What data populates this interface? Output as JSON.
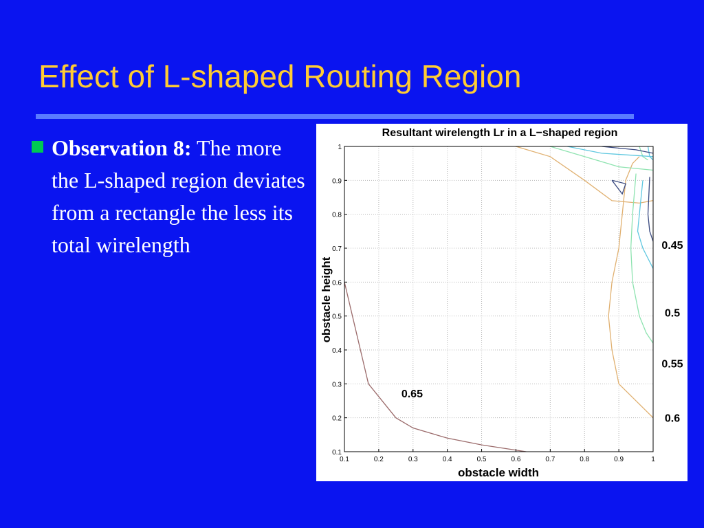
{
  "slide": {
    "title": "Effect of L-shaped Routing Region",
    "bullet_lead": "Observation 8:",
    "bullet_body": "The more the L-shaped region deviates from a rectangle the less its total wirelength",
    "title_color": "#ffcc33",
    "background_color": "#0a14f0",
    "bullet_marker_color": "#00c853"
  },
  "chart_data": {
    "type": "contour",
    "title": "Resultant wirelength Lr in a L−shaped region",
    "xlabel": "obstacle width",
    "ylabel": "obstacle height",
    "xlim": [
      0.1,
      1
    ],
    "ylim": [
      0.1,
      1
    ],
    "xticks": [
      "0.1",
      "0.2",
      "0.3",
      "0.4",
      "0.5",
      "0.6",
      "0.7",
      "0.8",
      "0.9",
      "1"
    ],
    "yticks": [
      "0.1",
      "0.2",
      "0.3",
      "0.4",
      "0.5",
      "0.6",
      "0.7",
      "0.8",
      "0.9",
      "1"
    ],
    "grid": true,
    "contours": [
      {
        "level": "0.65",
        "color": "#9b6b6b",
        "lines": [
          [
            [
              0.1,
              0.6
            ],
            [
              0.17,
              0.3
            ],
            [
              0.25,
              0.2
            ],
            [
              0.3,
              0.17
            ],
            [
              0.4,
              0.14
            ],
            [
              0.5,
              0.12
            ],
            [
              0.63,
              0.1
            ]
          ]
        ]
      },
      {
        "level": "0.6",
        "color": "#e0b070",
        "lines": [
          [
            [
              0.6,
              1.0
            ],
            [
              0.7,
              0.97
            ],
            [
              0.8,
              0.9
            ],
            [
              0.88,
              0.84
            ],
            [
              0.96,
              0.833
            ],
            [
              1.05,
              0.85
            ],
            [
              1.2,
              0.88
            ],
            [
              1.32,
              0.9
            ],
            [
              1.55,
              0.99
            ]
          ],
          [
            [
              1.0,
              0.2
            ],
            [
              0.9,
              0.3
            ],
            [
              0.88,
              0.4
            ],
            [
              0.87,
              0.5
            ],
            [
              0.88,
              0.6
            ],
            [
              0.9,
              0.7
            ],
            [
              0.91,
              0.8
            ],
            [
              0.92,
              0.9
            ],
            [
              0.94,
              0.95
            ],
            [
              0.96,
              0.97
            ]
          ]
        ]
      },
      {
        "level": "0.55",
        "color": "#8ee3b0",
        "lines": [
          [
            [
              0.7,
              1.0
            ],
            [
              0.8,
              0.97
            ],
            [
              0.9,
              0.94
            ],
            [
              1.0,
              0.93
            ],
            [
              1.1,
              0.93
            ],
            [
              1.2,
              0.94
            ],
            [
              1.3,
              0.96
            ],
            [
              1.45,
              0.98
            ],
            [
              1.55,
              1.0
            ]
          ],
          [
            [
              0.95,
              0.92
            ],
            [
              0.94,
              0.8
            ],
            [
              0.935,
              0.7
            ],
            [
              0.94,
              0.6
            ],
            [
              0.96,
              0.5
            ],
            [
              0.98,
              0.45
            ],
            [
              1.0,
              0.42
            ]
          ],
          [
            [
              0.96,
              1.0
            ],
            [
              0.97,
              0.97
            ],
            [
              0.985,
              0.96
            ]
          ]
        ]
      },
      {
        "level": "0.5",
        "color": "#60c8e0",
        "lines": [
          [
            [
              0.75,
              1.0
            ],
            [
              0.85,
              0.98
            ],
            [
              1.0,
              0.97
            ],
            [
              1.2,
              0.97
            ],
            [
              1.35,
              0.98
            ],
            [
              1.5,
              1.0
            ]
          ],
          [
            [
              0.97,
              0.9
            ],
            [
              0.96,
              0.8
            ],
            [
              0.955,
              0.75
            ],
            [
              0.97,
              0.7
            ],
            [
              1.0,
              0.64
            ]
          ],
          [
            [
              0.985,
              1.0
            ],
            [
              0.99,
              0.97
            ],
            [
              1.0,
              0.96
            ]
          ]
        ]
      },
      {
        "level": "0.45",
        "color": "#3a4a80",
        "lines": [
          [
            [
              0.85,
              1.0
            ],
            [
              0.95,
              0.99
            ],
            [
              1.0,
              0.98
            ]
          ],
          [
            [
              0.99,
              0.91
            ],
            [
              0.985,
              0.8
            ],
            [
              0.99,
              0.75
            ],
            [
              1.0,
              0.72
            ]
          ],
          [
            [
              0.88,
              0.9
            ],
            [
              0.92,
              0.89
            ],
            [
              0.91,
              0.86
            ],
            [
              0.88,
              0.9
            ]
          ]
        ]
      }
    ],
    "labels": [
      {
        "text": "0.65",
        "at": [
          0.25,
          0.26
        ]
      },
      {
        "text": "0.45",
        "side": "right",
        "y": 0.71
      },
      {
        "text": "0.5",
        "side": "right",
        "y": 0.51
      },
      {
        "text": "0.55",
        "side": "right",
        "y": 0.36
      },
      {
        "text": "0.6",
        "side": "right",
        "y": 0.2
      }
    ]
  }
}
